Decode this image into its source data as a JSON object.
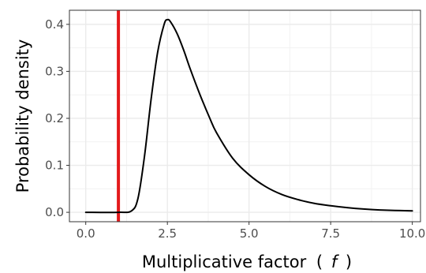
{
  "chart_data": {
    "type": "line",
    "title": "",
    "xlabel": "Multiplicative factor",
    "xlabel_symbol": "f",
    "ylabel": "Probability density",
    "xlim": [
      -0.5,
      10.25
    ],
    "ylim": [
      -0.02,
      0.43
    ],
    "x_ticks": [
      0.0,
      2.5,
      5.0,
      7.5,
      10.0
    ],
    "x_tick_labels": [
      "0.0",
      "2.5",
      "5.0",
      "7.5",
      "10.0"
    ],
    "y_ticks": [
      0.0,
      0.1,
      0.2,
      0.3,
      0.4
    ],
    "y_tick_labels": [
      "0.0",
      "0.1",
      "0.2",
      "0.3",
      "0.4"
    ],
    "grid": true,
    "theme": "bw",
    "series": [
      {
        "color": "#000000",
        "x": [
          0.0,
          1.0,
          1.4,
          1.6,
          1.8,
          2.0,
          2.2,
          2.4,
          2.5,
          2.6,
          2.8,
          3.0,
          3.2,
          3.5,
          3.8,
          4.0,
          4.5,
          5.0,
          5.5,
          6.0,
          6.5,
          7.0,
          7.5,
          8.0,
          8.5,
          9.0,
          10.0
        ],
        "y": [
          0.0,
          0.0,
          0.003,
          0.03,
          0.12,
          0.24,
          0.34,
          0.4,
          0.41,
          0.405,
          0.38,
          0.345,
          0.305,
          0.25,
          0.2,
          0.17,
          0.115,
          0.08,
          0.055,
          0.038,
          0.027,
          0.019,
          0.014,
          0.01,
          0.007,
          0.005,
          0.003
        ]
      }
    ],
    "reference_line": {
      "x": 1.0,
      "color": "#e31a1c"
    }
  }
}
